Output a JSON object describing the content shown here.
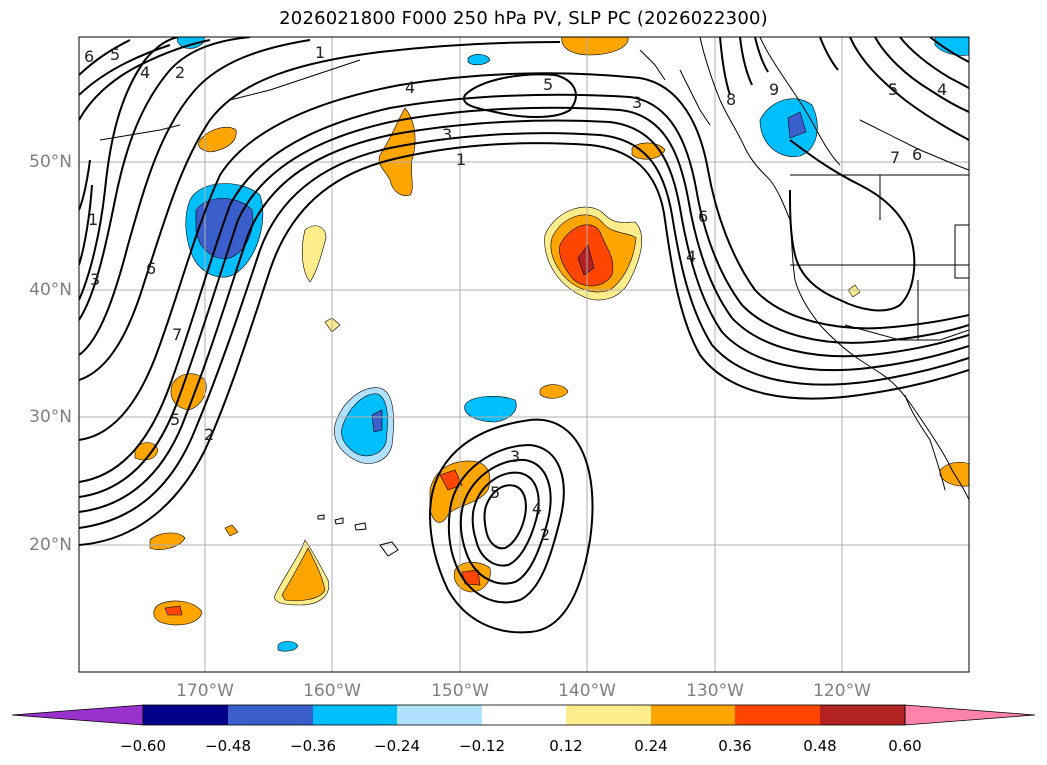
{
  "title": "2026021800 F000 250 hPa PV, SLP PC (2026022300)",
  "map": {
    "lat_labels": [
      "50°N",
      "40°N",
      "30°N",
      "20°N"
    ],
    "lon_labels": [
      "170°W",
      "160°W",
      "150°W",
      "140°W",
      "130°W",
      "120°W"
    ],
    "contour_labels": [
      "6",
      "5",
      "4",
      "2",
      "1",
      "4",
      "5",
      "3",
      "3",
      "1",
      "8",
      "9",
      "5",
      "4",
      "6",
      "7",
      "6",
      "4",
      "1",
      "3",
      "6",
      "7",
      "5",
      "2",
      "3",
      "5",
      "4",
      "2"
    ],
    "colors": {
      "grid": "#b0b0b0",
      "contour": "#000000"
    }
  },
  "colorbar": {
    "ticks": [
      "−0.60",
      "−0.48",
      "−0.36",
      "−0.24",
      "−0.12",
      "0.12",
      "0.24",
      "0.36",
      "0.48",
      "0.60"
    ],
    "colors": [
      "#9932cc",
      "#00008b",
      "#3a5fcd",
      "#00bfff",
      "#b0e2ff",
      "#ffffff",
      "#ffec8b",
      "#ffa500",
      "#ff4500",
      "#b22222",
      "#ff82ab"
    ]
  }
}
